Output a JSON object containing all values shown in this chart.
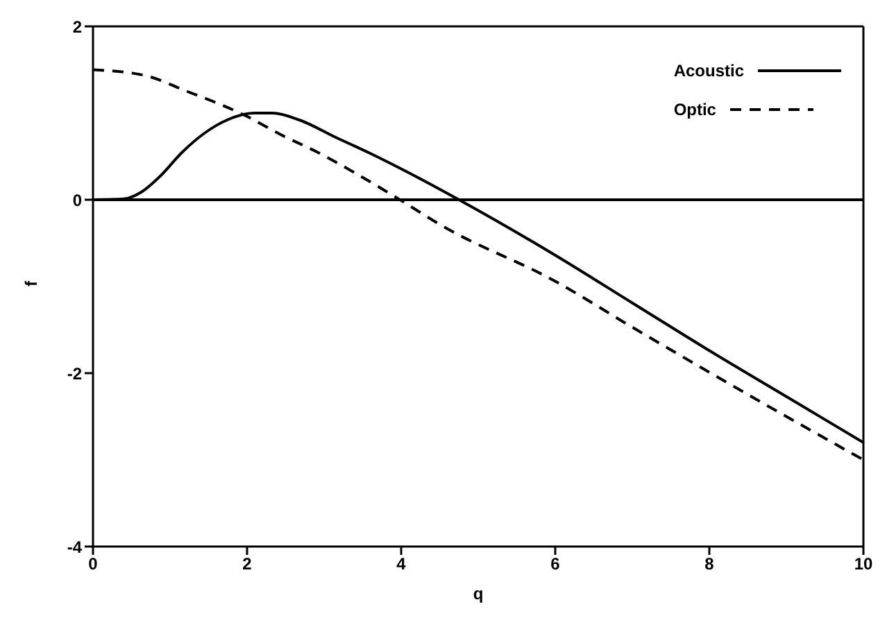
{
  "chart_data": {
    "type": "line",
    "xlabel": "q",
    "ylabel": "f",
    "xlim": [
      0,
      10
    ],
    "ylim": [
      -4,
      2
    ],
    "xticks": [
      0,
      2,
      4,
      6,
      8,
      10
    ],
    "yticks": [
      -4,
      -2,
      0,
      2
    ],
    "legend": "top right",
    "marker": "none",
    "ref_lines": [
      {
        "axis": "y",
        "value": 0,
        "color": "#000000",
        "line_style": "solid"
      }
    ],
    "series": [
      {
        "name": "Acoustic",
        "color": "#000000",
        "line_style": "solid",
        "x": [
          0,
          0.4,
          0.63,
          0.87,
          1.16,
          1.45,
          1.74,
          2.09,
          2.33,
          2.68,
          3.15,
          3.61,
          4.08,
          4.75,
          6,
          7,
          8,
          9,
          10
        ],
        "values": [
          0,
          0.01,
          0.09,
          0.27,
          0.55,
          0.77,
          0.92,
          1.0,
          1.0,
          0.92,
          0.72,
          0.53,
          0.32,
          0,
          -0.64,
          -1.19,
          -1.74,
          -2.27,
          -2.8
        ]
      },
      {
        "name": "Optic",
        "color": "#000000",
        "line_style": "dashed",
        "x": [
          0,
          0.69,
          1.22,
          1.57,
          1.98,
          2.44,
          2.91,
          3.38,
          3.91,
          4.55,
          6,
          7,
          8,
          9,
          10
        ],
        "values": [
          1.5,
          1.43,
          1.25,
          1.13,
          0.97,
          0.75,
          0.55,
          0.32,
          0.04,
          -0.31,
          -0.94,
          -1.47,
          -1.99,
          -2.5,
          -3.0
        ]
      }
    ]
  }
}
